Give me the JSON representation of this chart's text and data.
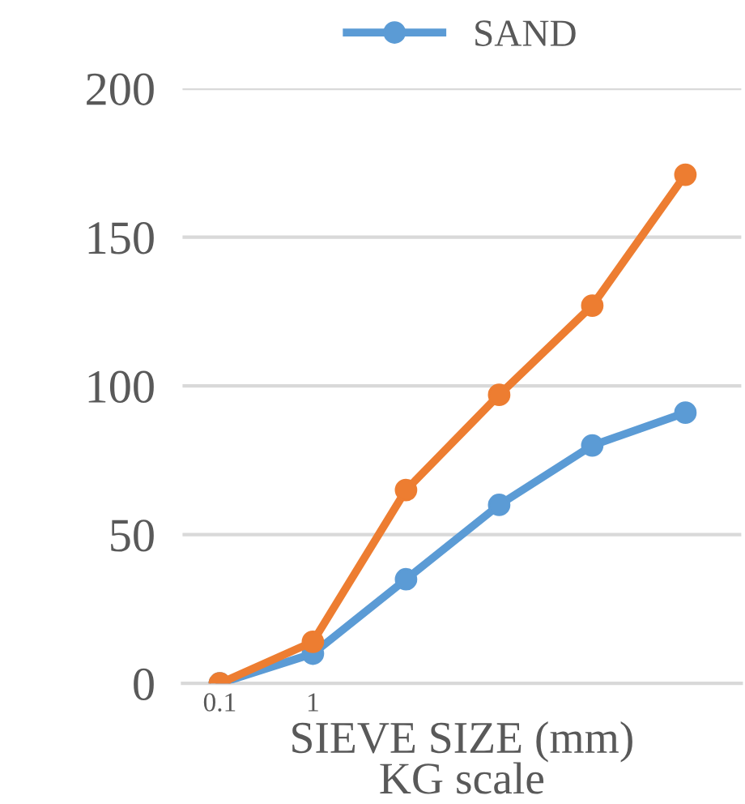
{
  "chart_data": {
    "type": "line",
    "categories": [
      "0.1",
      "1",
      null,
      null,
      null,
      null
    ],
    "series": [
      {
        "name": "SAND",
        "color": "#5b9bd5",
        "values": [
          0,
          10,
          35,
          60,
          80,
          91
        ]
      },
      {
        "color": "#ed7d31",
        "values": [
          0,
          14,
          65,
          97,
          127,
          171
        ]
      }
    ],
    "xlabel": "SIEVE SIZE (mm)\nKG scale",
    "ylim": [
      0,
      200
    ],
    "yticks": [
      0,
      50,
      100,
      150,
      200
    ],
    "grid": "y",
    "legend": "top",
    "marker": "circle",
    "line_style": "solid"
  }
}
